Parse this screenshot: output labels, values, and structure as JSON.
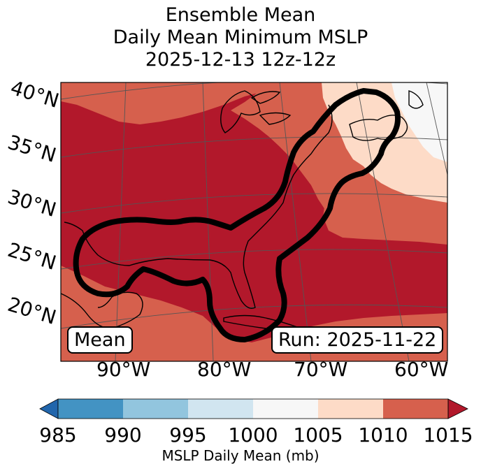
{
  "title": {
    "line1": "Ensemble Mean",
    "line2": "Daily Mean Minimum MSLP",
    "line3": "2025-12-13 12z-12z"
  },
  "lat_labels": [
    "40°N",
    "35°N",
    "30°N",
    "25°N",
    "20°N"
  ],
  "lon_labels": [
    "90°W",
    "80°W",
    "70°W",
    "60°W"
  ],
  "boxes": {
    "left": "Mean",
    "right": "Run: 2025-11-22"
  },
  "colorbar": {
    "ticks": [
      "985",
      "990",
      "995",
      "1000",
      "1005",
      "1010",
      "1015"
    ],
    "colors": [
      "#2166ac",
      "#4393c3",
      "#92c5de",
      "#d1e5f0",
      "#f7f7f7",
      "#fddbc7",
      "#d6604d",
      "#b2182b"
    ],
    "label": "MSLP Daily Mean (mb)"
  },
  "map_colors": {
    "band_1015": "#b2182b",
    "band_1010": "#d6604d",
    "band_1005": "#fddbc7",
    "band_1000": "#f7f7f7",
    "contour": "#000000",
    "coastline": "#000000",
    "gridline": "#555555"
  }
}
